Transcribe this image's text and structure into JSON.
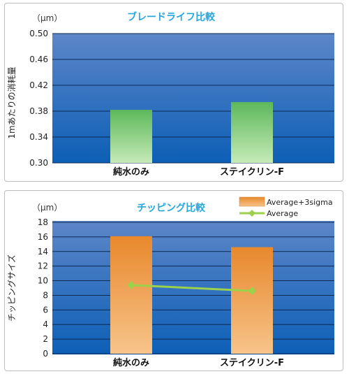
{
  "chart_data": [
    {
      "type": "bar",
      "title": "ブレードライフ比較",
      "unit_label": "（μm）",
      "ylabel": "1mあたりの消耗量",
      "categories": [
        "純水のみ",
        "ステイクリン-F"
      ],
      "series": [
        {
          "values": [
            0.382,
            0.394
          ]
        }
      ],
      "ylim": [
        0.3,
        0.5
      ],
      "yticks": [
        "0.30",
        "0.34",
        "0.38",
        "0.42",
        "0.46",
        "0.50"
      ],
      "grid": true,
      "colors": {
        "bar": "#5db85a",
        "bar_light": "#c6eab8",
        "plot_top": "#5d86c8",
        "plot_bottom": "#0c5fb6",
        "title": "#2aa6df"
      }
    },
    {
      "type": "bar",
      "title": "チッピング比較",
      "unit_label": "（μm）",
      "ylabel": "チッピングサイズ",
      "categories": [
        "純水のみ",
        "ステイクリン-F"
      ],
      "series": [
        {
          "name": "Average+3sigma",
          "type": "bar",
          "values": [
            16.1,
            14.6
          ]
        },
        {
          "name": "Average",
          "type": "line",
          "values": [
            9.4,
            8.6
          ]
        }
      ],
      "ylim": [
        0,
        18
      ],
      "yticks": [
        "0",
        "2",
        "4",
        "6",
        "8",
        "10",
        "12",
        "14",
        "16",
        "18"
      ],
      "grid": true,
      "legend_position": "top-right",
      "colors": {
        "bar": "#e8882c",
        "bar_light": "#f7c48a",
        "line": "#9bd14b",
        "plot_top": "#5d86c8",
        "plot_bottom": "#0c5fb6",
        "title": "#2aa6df"
      }
    }
  ]
}
